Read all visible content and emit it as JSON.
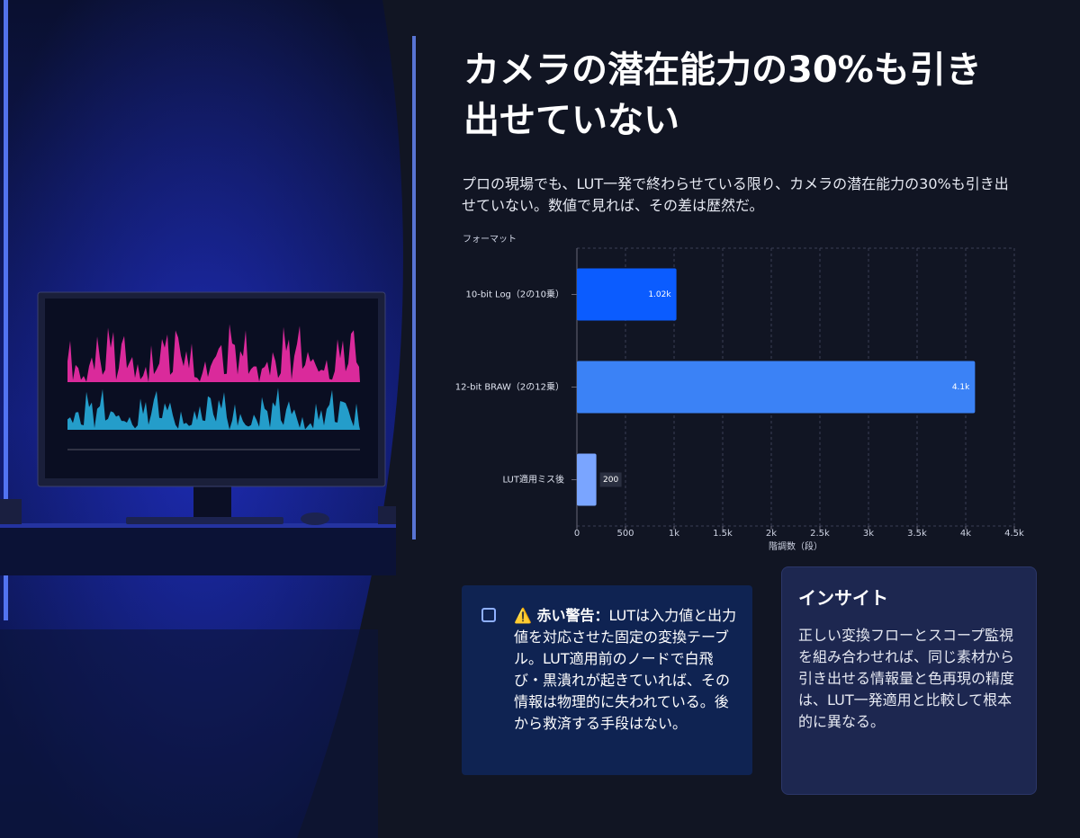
{
  "title": "カメラの潜在能力の30%も引き出せていない",
  "subtitle": "プロの現場でも、LUT一発で終わらせている限り、カメラの潜在能力の30%も引き出せていない。数値で見れば、その差は歴然だ。",
  "chart_data": {
    "type": "hbar",
    "y_axis_title": "フォーマット",
    "x_axis_title": "階調数（段）",
    "categories": [
      "10-bit Log（2の10乗）",
      "12-bit BRAW（2の12乗）",
      "LUT適用ミス後"
    ],
    "values": [
      1024,
      4096,
      200
    ],
    "value_labels": [
      "1.02k",
      "4.1k",
      "200"
    ],
    "colors": [
      "#0b5cff",
      "#3b82f6",
      "#7aa5ff"
    ],
    "xlim": [
      0,
      4500
    ],
    "xticks": [
      0,
      500,
      {
        "value": 1000,
        "label": "1k"
      },
      {
        "value": 1500,
        "label": "1.5k"
      },
      {
        "value": 2000,
        "label": "2k"
      },
      {
        "value": 2500,
        "label": "2.5k"
      },
      {
        "value": 3000,
        "label": "3k"
      },
      {
        "value": 3500,
        "label": "3.5k"
      },
      {
        "value": 4000,
        "label": "4k"
      },
      {
        "value": 4500,
        "label": "4.5k"
      }
    ],
    "grid": true
  },
  "warning": {
    "label": "⚠️ 赤い警告：",
    "text": "LUTは入力値と出力値を対応させた固定の変換テーブル。LUT適用前のノードで白飛び・黒潰れが起きていれば、その情報は物理的に失われている。後から救済する手段はない。"
  },
  "insight": {
    "title": "インサイト",
    "text": "正しい変換フローとスコープ監視を組み合わせれば、同じ素材から引き出せる情報量と色再現の精度は、LUT一発適用と比較して根本的に異なる。"
  }
}
